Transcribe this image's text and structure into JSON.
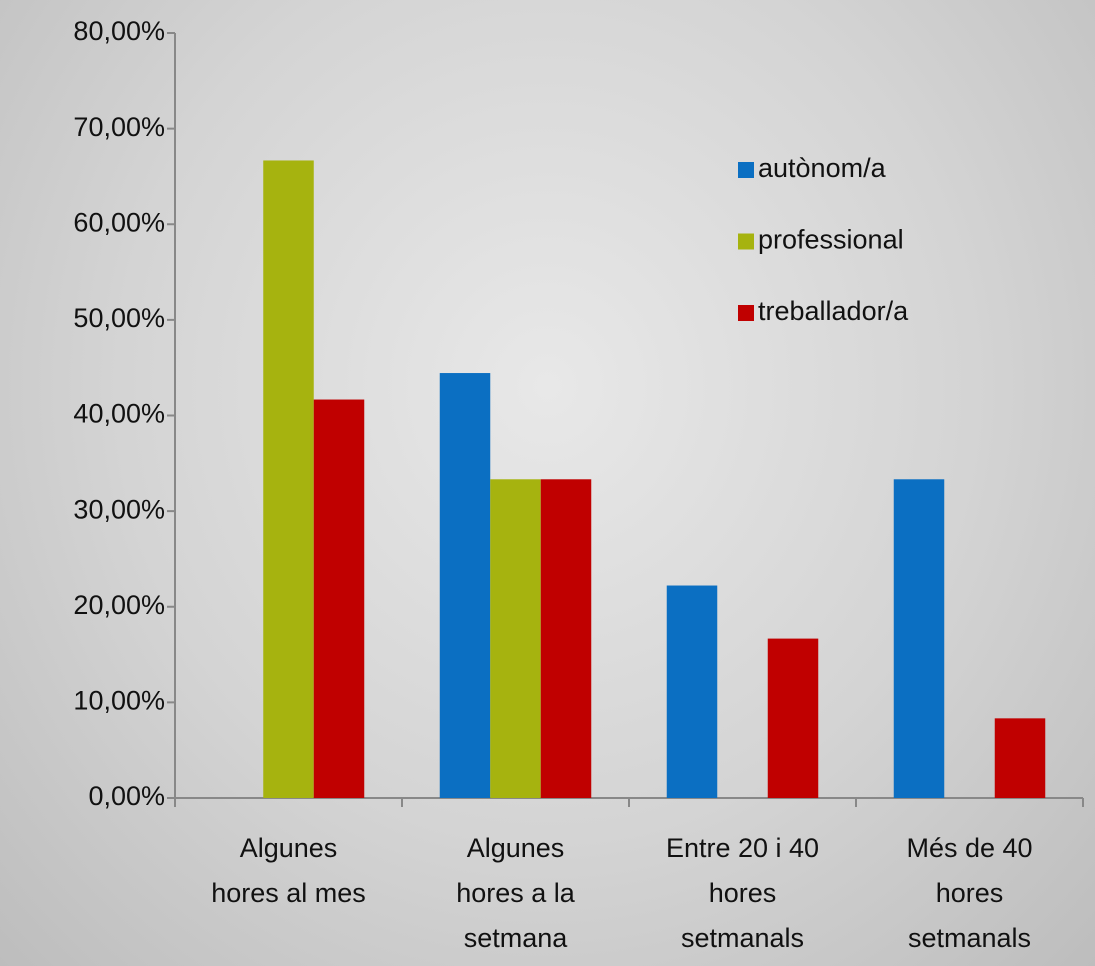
{
  "chart_data": {
    "type": "bar",
    "categories": [
      [
        "Algunes",
        "hores al mes"
      ],
      [
        "Algunes",
        "hores a la",
        "setmana"
      ],
      [
        "Entre 20 i 40",
        "hores",
        "setmanals"
      ],
      [
        "Més de 40",
        "hores",
        "setmanals"
      ]
    ],
    "series": [
      {
        "name": "autònom/a",
        "color": "#0b6fc2",
        "values": [
          0,
          44.44,
          22.22,
          33.33
        ]
      },
      {
        "name": "professional",
        "color": "#a6b30f",
        "values": [
          66.67,
          33.33,
          0,
          0
        ]
      },
      {
        "name": "treballador/a",
        "color": "#c00000",
        "values": [
          41.67,
          33.33,
          16.67,
          8.33
        ]
      }
    ],
    "ylim": [
      0,
      80
    ],
    "yticks": [
      {
        "value": 0,
        "label": "0,00%"
      },
      {
        "value": 10,
        "label": "10,00%"
      },
      {
        "value": 20,
        "label": "20,00%"
      },
      {
        "value": 30,
        "label": "30,00%"
      },
      {
        "value": 40,
        "label": "40,00%"
      },
      {
        "value": 50,
        "label": "50,00%"
      },
      {
        "value": 60,
        "label": "60,00%"
      },
      {
        "value": 70,
        "label": "70,00%"
      },
      {
        "value": 80,
        "label": "80,00%"
      }
    ],
    "legend": "upper right",
    "grid": false
  }
}
